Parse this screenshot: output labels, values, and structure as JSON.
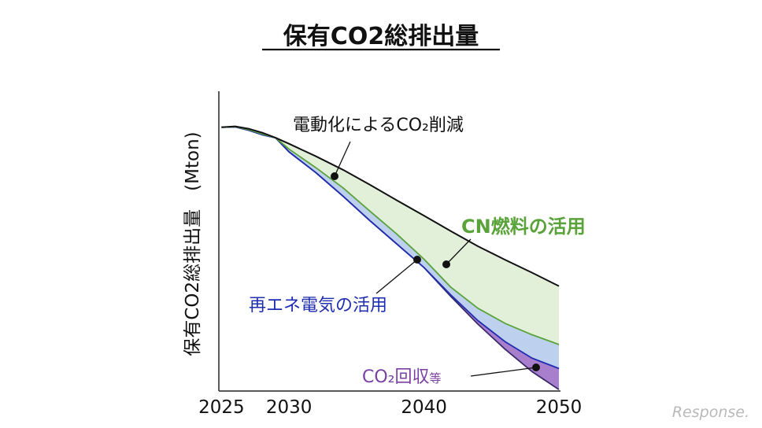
{
  "chart_data": {
    "type": "area",
    "title": "保有CO2総排出量",
    "ylabel": "保有CO2総排出量　(Mton)",
    "xlabel": "",
    "x_ticks": [
      "2025",
      "2030",
      "2040",
      "2050"
    ],
    "x_tick_values": [
      2025,
      2030,
      2040,
      2050
    ],
    "xlim": [
      2024.8,
      2050
    ],
    "ylim": [
      0,
      100
    ],
    "grid": false,
    "legend": "none",
    "x": [
      2025,
      2026,
      2027,
      2028,
      2029,
      2030,
      2032,
      2034,
      2036,
      2038,
      2040,
      2042,
      2044,
      2046,
      2048,
      2050
    ],
    "series": [
      {
        "key": "baseline",
        "color": "#111111",
        "values": [
          88,
          88.3,
          87.5,
          86.2,
          84.5,
          82.5,
          78.3,
          73.8,
          68.8,
          63.6,
          58.5,
          53.3,
          48.3,
          43.8,
          39.5,
          35
        ]
      },
      {
        "key": "cn_fuel",
        "color": "#5aa33a",
        "values": [
          88,
          88.2,
          87.2,
          85.8,
          84.5,
          80.7,
          74.5,
          67.8,
          60,
          52.3,
          44,
          34.6,
          27.6,
          22.6,
          18.8,
          15.5
        ]
      },
      {
        "key": "electricity",
        "color": "#1f2db0",
        "values": [
          88,
          88.1,
          87,
          85.5,
          84.5,
          79.8,
          72.8,
          65,
          56.8,
          49,
          41.2,
          32,
          23.5,
          16.5,
          11,
          7.5
        ]
      },
      {
        "key": "co2_capture",
        "color": "#3b2a6a",
        "values": [
          88,
          88.1,
          87,
          85.5,
          84.5,
          79.8,
          72.8,
          65,
          56.8,
          49,
          41.2,
          31.5,
          22.3,
          14,
          6.5,
          0.5
        ]
      }
    ],
    "fills": {
      "green": "#e2efd9",
      "blue": "#bdd1ee",
      "purple": "#a87fcc"
    },
    "annotations": [
      {
        "key": "electrification",
        "text": "電動化によるCO₂削減",
        "color": "#111111",
        "weight": "normal"
      },
      {
        "key": "cn_fuel",
        "text": "CN燃料の活用",
        "color": "#5aa33a",
        "weight": "bold"
      },
      {
        "key": "renewable",
        "text": "再エネ電気の活用",
        "color": "#1f2db0",
        "weight": "normal"
      },
      {
        "key": "capture",
        "text": "CO₂回収",
        "suffix": "等",
        "color": "#7a3fa3",
        "weight": "normal"
      }
    ]
  },
  "watermark": "Response."
}
